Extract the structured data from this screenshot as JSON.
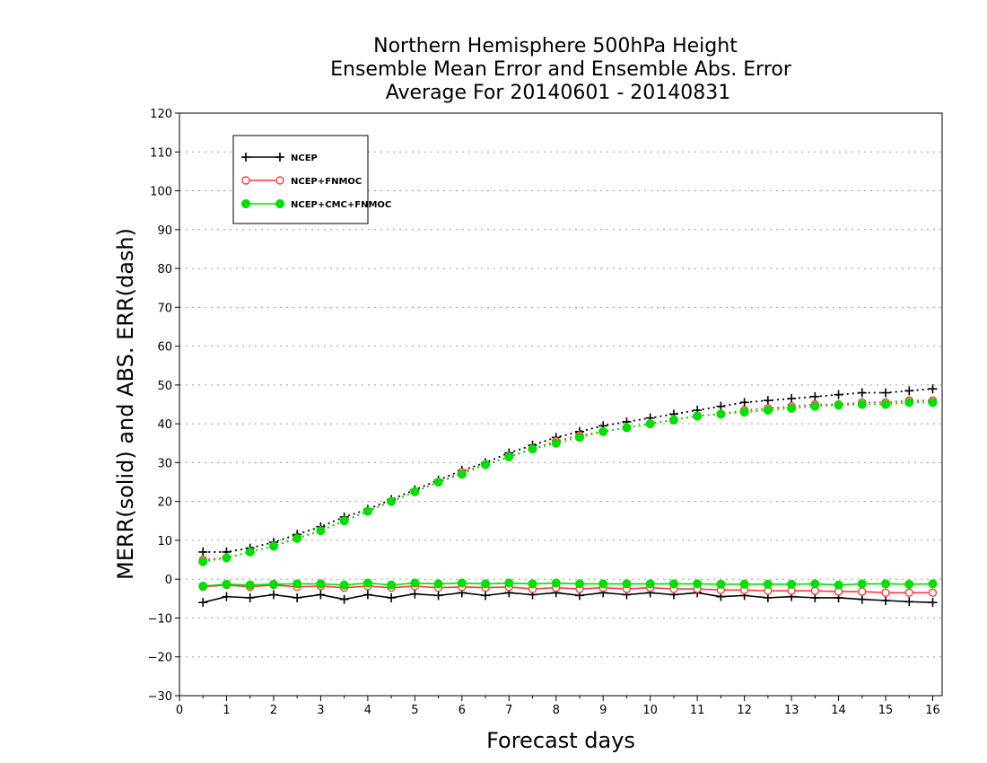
{
  "chart_data": {
    "type": "line",
    "title_lines": [
      "Northern Hemisphere 500hPa Height",
      "Ensemble Mean Error and Ensemble Abs. Error",
      "Average For 20140601 - 20140831"
    ],
    "xlabel": "Forecast days",
    "ylabel": "MERR(solid) and ABS. ERR(dash)",
    "xlim": [
      0,
      16.2
    ],
    "ylim": [
      -30,
      120
    ],
    "xticks": [
      0,
      1,
      2,
      3,
      4,
      5,
      6,
      7,
      8,
      9,
      10,
      11,
      12,
      13,
      14,
      15,
      16
    ],
    "yticks": [
      -30,
      -20,
      -10,
      0,
      10,
      20,
      30,
      40,
      50,
      60,
      70,
      80,
      90,
      100,
      110,
      120
    ],
    "ytick_labels": [
      "−30",
      "−20",
      "−10",
      "0",
      "10",
      "20",
      "30",
      "40",
      "50",
      "60",
      "70",
      "80",
      "90",
      "100",
      "110",
      "120"
    ],
    "grid": "horizontal dotted",
    "legend_position": "top-left",
    "x": [
      0.5,
      1,
      1.5,
      2,
      2.5,
      3,
      3.5,
      4,
      4.5,
      5,
      5.5,
      6,
      6.5,
      7,
      7.5,
      8,
      8.5,
      9,
      9.5,
      10,
      10.5,
      11,
      11.5,
      12,
      12.5,
      13,
      13.5,
      14,
      14.5,
      15,
      15.5,
      16
    ],
    "series": [
      {
        "name": "NCEP",
        "color": "#000000",
        "marker": "plus",
        "abs_err": [
          7,
          7,
          8,
          9.5,
          11.5,
          13.5,
          16,
          18,
          20.5,
          23,
          25.5,
          28,
          30,
          32.5,
          34.5,
          36.5,
          38,
          39.5,
          40.5,
          41.5,
          42.5,
          43.5,
          44.5,
          45.5,
          46,
          46.5,
          47,
          47.5,
          48,
          48,
          48.5,
          49
        ],
        "mean_err": [
          -6,
          -4.5,
          -4.8,
          -4,
          -4.8,
          -4,
          -5.2,
          -4,
          -4.8,
          -3.8,
          -4.2,
          -3.5,
          -4.2,
          -3.5,
          -4,
          -3.5,
          -4.2,
          -3.5,
          -4,
          -3.5,
          -4,
          -3.5,
          -4.5,
          -4.2,
          -4.8,
          -4.5,
          -4.8,
          -4.8,
          -5.2,
          -5.5,
          -5.8,
          -6
        ]
      },
      {
        "name": "NCEP+FNMOC",
        "color": "#ff3b3b",
        "marker": "open-circle",
        "abs_err": [
          5,
          5.5,
          7,
          8.5,
          10.5,
          12.5,
          15,
          17.5,
          20,
          22.5,
          25,
          27.5,
          29.5,
          31.5,
          33.5,
          35.5,
          37,
          38,
          39,
          40,
          41,
          42,
          42.5,
          43.5,
          44,
          44.5,
          45,
          45,
          45.5,
          45.5,
          46,
          46
        ],
        "mean_err": [
          -2,
          -1.5,
          -2,
          -1.5,
          -2,
          -1.8,
          -2.2,
          -1.8,
          -2.2,
          -1.8,
          -2.2,
          -2,
          -2.2,
          -2,
          -2.5,
          -2.2,
          -2.5,
          -2.2,
          -2.5,
          -2.2,
          -2.5,
          -2.5,
          -2.8,
          -2.8,
          -3,
          -3,
          -3,
          -3.2,
          -3.2,
          -3.5,
          -3.5,
          -3.5
        ]
      },
      {
        "name": "NCEP+CMC+FNMOC",
        "color": "#00e000",
        "marker": "filled-circle",
        "abs_err": [
          4.5,
          5.5,
          7,
          8.5,
          10.5,
          12.5,
          15,
          17.5,
          20,
          22.5,
          25,
          27,
          29.5,
          31.5,
          33.5,
          35,
          36.5,
          38,
          39,
          40,
          41,
          42,
          42.5,
          43,
          43.5,
          44,
          44.5,
          44.8,
          45,
          45,
          45.5,
          45.5
        ],
        "mean_err": [
          -1.8,
          -1.3,
          -1.5,
          -1.3,
          -1.2,
          -1.2,
          -1.5,
          -1,
          -1.5,
          -1,
          -1.2,
          -1,
          -1.2,
          -1,
          -1.2,
          -1,
          -1.2,
          -1.2,
          -1.2,
          -1.2,
          -1.2,
          -1.2,
          -1.3,
          -1.3,
          -1.3,
          -1.3,
          -1.2,
          -1.5,
          -1.2,
          -1.2,
          -1.3,
          -1.2
        ]
      }
    ]
  }
}
